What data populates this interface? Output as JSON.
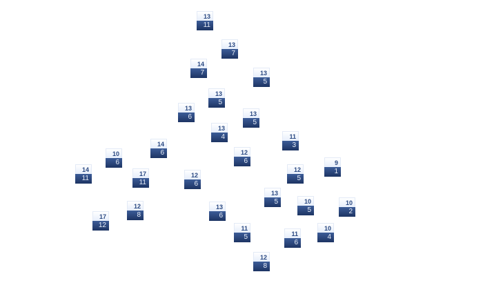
{
  "colors": {
    "top_fill": "#e6eefb",
    "top_text": "#2c4a82",
    "bottom_fill": "#1d3463",
    "bottom_text": "#e8eef8"
  },
  "nodes": [
    {
      "top": "13",
      "bottom": "11"
    },
    {
      "top": "13",
      "bottom": "7"
    },
    {
      "top": "14",
      "bottom": "7"
    },
    {
      "top": "13",
      "bottom": "5"
    },
    {
      "top": "13",
      "bottom": "5"
    },
    {
      "top": "13",
      "bottom": "6"
    },
    {
      "top": "13",
      "bottom": "5"
    },
    {
      "top": "13",
      "bottom": "4"
    },
    {
      "top": "14",
      "bottom": "6"
    },
    {
      "top": "10",
      "bottom": "6"
    },
    {
      "top": "12",
      "bottom": "6"
    },
    {
      "top": "11",
      "bottom": "3"
    },
    {
      "top": "14",
      "bottom": "11"
    },
    {
      "top": "17",
      "bottom": "11"
    },
    {
      "top": "12",
      "bottom": "6"
    },
    {
      "top": "12",
      "bottom": "5"
    },
    {
      "top": "9",
      "bottom": "1"
    },
    {
      "top": "13",
      "bottom": "5"
    },
    {
      "top": "12",
      "bottom": "8"
    },
    {
      "top": "13",
      "bottom": "6"
    },
    {
      "top": "10",
      "bottom": "5"
    },
    {
      "top": "10",
      "bottom": "2"
    },
    {
      "top": "17",
      "bottom": "12"
    },
    {
      "top": "11",
      "bottom": "5"
    },
    {
      "top": "11",
      "bottom": "6"
    },
    {
      "top": "10",
      "bottom": "4"
    },
    {
      "top": "12",
      "bottom": "8"
    }
  ]
}
